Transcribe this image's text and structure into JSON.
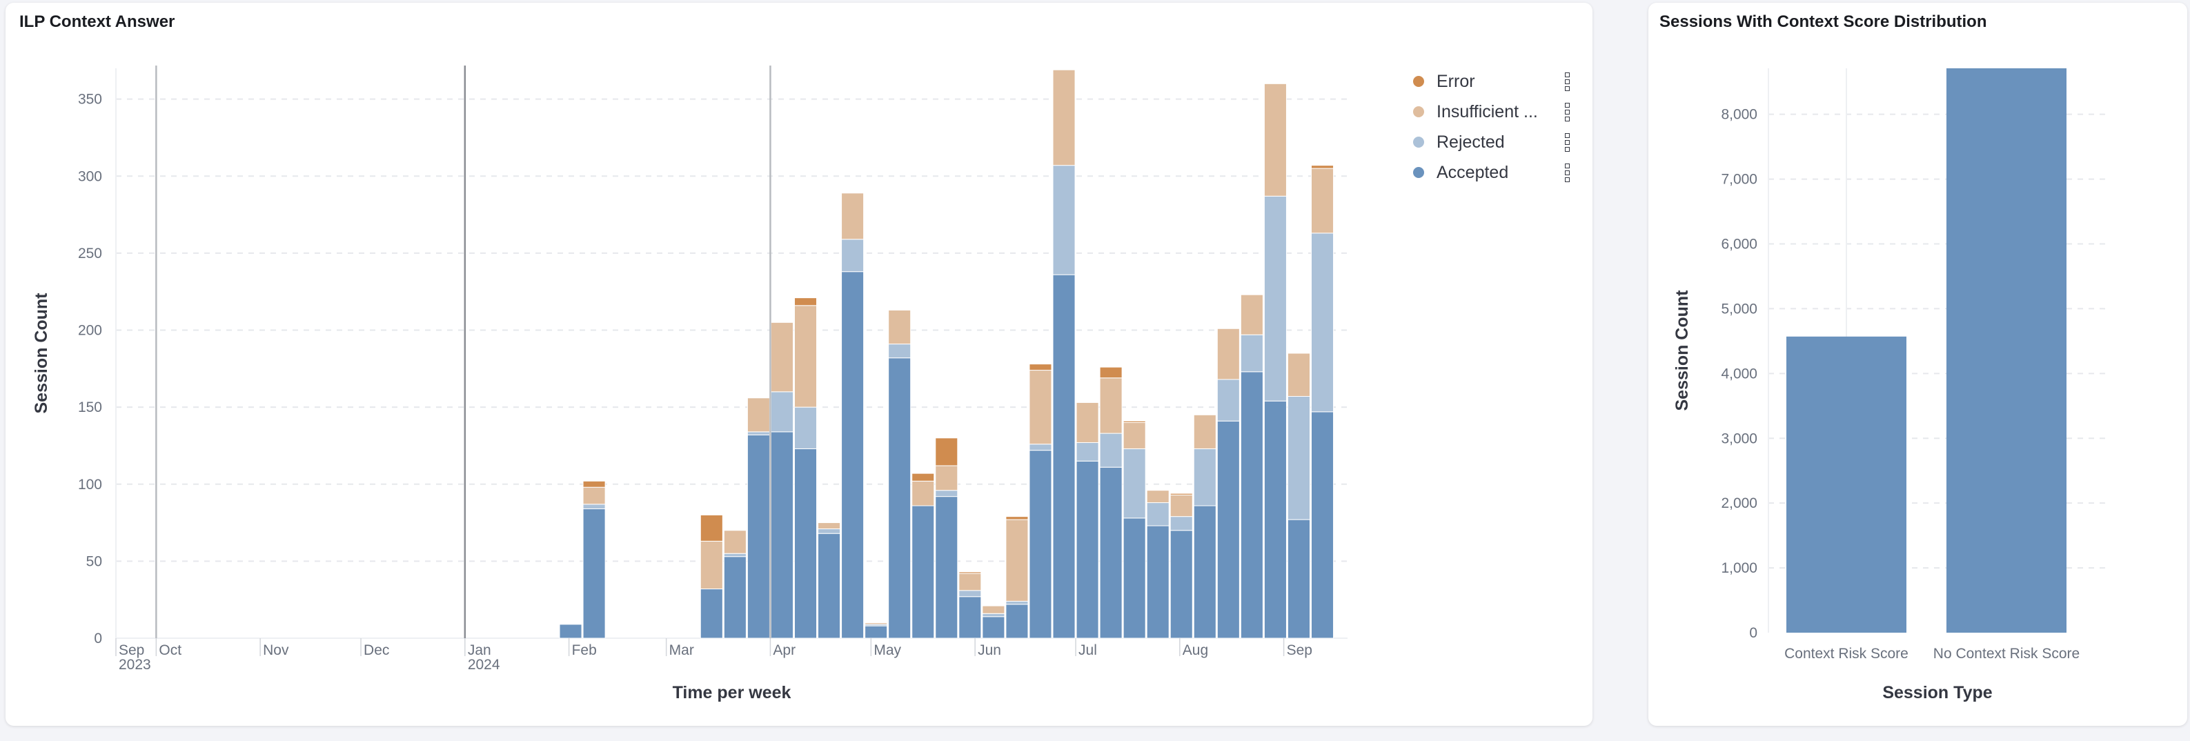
{
  "left_panel": {
    "title": "ILP Context Answer"
  },
  "right_panel": {
    "title": "Sessions With Context Score Distribution"
  },
  "chart_data": [
    {
      "type": "bar",
      "stacked": true,
      "title": "ILP Context Answer",
      "xlabel": "Time per week",
      "ylabel": "Session Count",
      "ylim": [
        0,
        370
      ],
      "yticks": [
        0,
        50,
        100,
        150,
        200,
        250,
        300,
        350
      ],
      "xlim": [
        "2023-09-19",
        "2024-09-20"
      ],
      "xticks": [
        {
          "date": "2023-09-19",
          "label": "Sep",
          "sub": "2023"
        },
        {
          "date": "2023-10-01",
          "label": "Oct"
        },
        {
          "date": "2023-11-01",
          "label": "Nov"
        },
        {
          "date": "2023-12-01",
          "label": "Dec"
        },
        {
          "date": "2024-01-01",
          "label": "Jan",
          "sub": "2024"
        },
        {
          "date": "2024-02-01",
          "label": "Feb"
        },
        {
          "date": "2024-03-01",
          "label": "Mar"
        },
        {
          "date": "2024-04-01",
          "label": "Apr"
        },
        {
          "date": "2024-05-01",
          "label": "May"
        },
        {
          "date": "2024-06-01",
          "label": "Jun"
        },
        {
          "date": "2024-07-01",
          "label": "Jul"
        },
        {
          "date": "2024-08-01",
          "label": "Aug"
        },
        {
          "date": "2024-09-01",
          "label": "Sep"
        }
      ],
      "annotation_lines": [
        "2023-10-01",
        "2024-01-01",
        "2024-04-01"
      ],
      "grid": "horizontal dashed",
      "legend_position": "right",
      "categories": [
        "2024-01-29",
        "2024-02-05",
        "2024-03-11",
        "2024-03-18",
        "2024-03-25",
        "2024-04-01",
        "2024-04-08",
        "2024-04-15",
        "2024-04-22",
        "2024-04-29",
        "2024-05-06",
        "2024-05-13",
        "2024-05-20",
        "2024-05-27",
        "2024-06-03",
        "2024-06-10",
        "2024-06-17",
        "2024-06-24",
        "2024-07-01",
        "2024-07-08",
        "2024-07-15",
        "2024-07-22",
        "2024-07-29",
        "2024-08-05",
        "2024-08-12",
        "2024-08-19",
        "2024-08-26",
        "2024-09-02",
        "2024-09-09"
      ],
      "series": [
        {
          "name": "Accepted",
          "color": "#6a92bd",
          "values": [
            9,
            84,
            32,
            53,
            132,
            134,
            123,
            68,
            238,
            8,
            182,
            86,
            92,
            27,
            14,
            22,
            122,
            236,
            115,
            111,
            78,
            73,
            70,
            86,
            141,
            173,
            154,
            77,
            147
          ]
        },
        {
          "name": "Rejected",
          "color": "#abc1d8",
          "values": [
            0,
            3,
            0,
            2,
            2,
            26,
            27,
            3,
            21,
            1,
            9,
            0,
            4,
            4,
            2,
            2,
            4,
            71,
            12,
            22,
            45,
            15,
            9,
            37,
            27,
            24,
            133,
            80,
            116
          ]
        },
        {
          "name": "Insufficient ...",
          "color": "#dfbd9e",
          "values": [
            0,
            11,
            31,
            15,
            22,
            45,
            66,
            4,
            30,
            1,
            22,
            16,
            16,
            11,
            5,
            53,
            48,
            62,
            26,
            36,
            17,
            8,
            14,
            22,
            33,
            26,
            73,
            28,
            42
          ]
        },
        {
          "name": "Error",
          "color": "#d08c4f",
          "values": [
            0,
            4,
            17,
            0,
            0,
            0,
            5,
            0,
            0,
            0,
            0,
            5,
            18,
            1,
            0,
            2,
            4,
            0,
            0,
            7,
            1,
            0,
            1,
            0,
            0,
            0,
            0,
            0,
            2
          ]
        }
      ]
    },
    {
      "type": "bar",
      "title": "Sessions With Context Score Distribution",
      "xlabel": "Session Type",
      "ylabel": "Session Count",
      "ylim": [
        0,
        8710
      ],
      "yticks": [
        0,
        1000,
        2000,
        3000,
        4000,
        5000,
        6000,
        7000,
        8000
      ],
      "ytick_labels": [
        "0",
        "1,000",
        "2,000",
        "3,000",
        "4,000",
        "5,000",
        "6,000",
        "7,000",
        "8,000"
      ],
      "categories": [
        "Context Risk Score",
        "No Context Risk Score"
      ],
      "values": [
        4570,
        8710
      ],
      "color": "#6a92bd",
      "grid": "horizontal dashed"
    }
  ]
}
